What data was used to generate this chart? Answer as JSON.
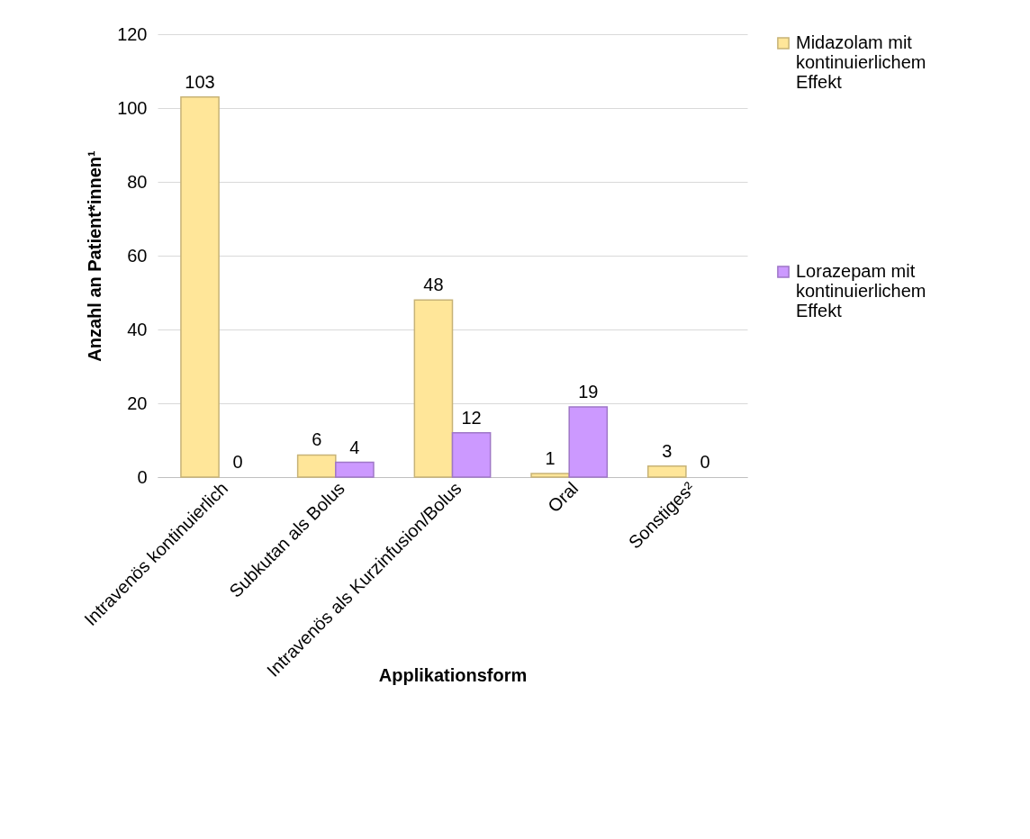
{
  "chart_data": {
    "type": "bar",
    "xlabel": "Applikationsform",
    "ylabel": "Anzahl an Patient*innen¹",
    "categories": [
      "Intravenös kontinuierlich",
      "Subkutan als Bolus",
      "Intravenös als Kurzinfusion/Bolus",
      "Oral",
      "Sonstiges²"
    ],
    "series": [
      {
        "name": "Midazolam mit kontinuierlichem Effekt",
        "color": "#ffe699",
        "values": [
          103,
          6,
          48,
          1,
          3
        ]
      },
      {
        "name": "Lorazepam mit kontinuierlichem Effekt",
        "color": "#cc99ff",
        "values": [
          0,
          4,
          12,
          19,
          0
        ]
      }
    ],
    "ylim": [
      0,
      120
    ],
    "yticks": [
      0,
      20,
      40,
      60,
      80,
      100,
      120
    ],
    "grid": "y",
    "legend": "right",
    "data_labels": true
  }
}
